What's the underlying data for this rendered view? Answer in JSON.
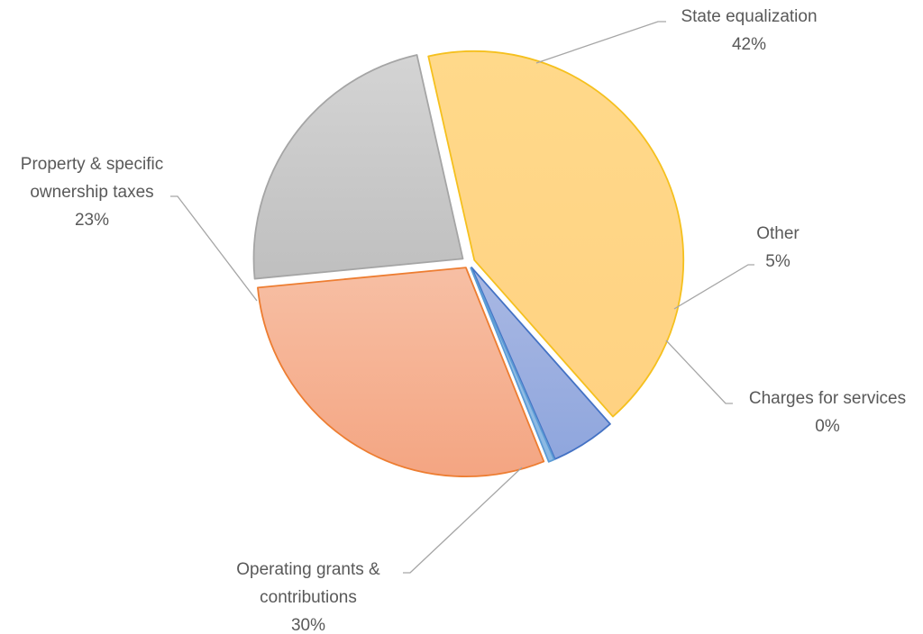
{
  "chart_data": {
    "type": "pie",
    "title": "",
    "slices": [
      {
        "name": "State equalization",
        "label": "State equalization",
        "percent_label": "42%",
        "value": 42.0,
        "color": "#FFD98A",
        "gradient_to": "#FFD282",
        "stroke": "#F5C01E"
      },
      {
        "name": "Other",
        "label": "Other",
        "percent_label": "5%",
        "value": 5.0,
        "color": "#A9B8E3",
        "gradient_to": "#8FA6DD",
        "stroke": "#4472C4"
      },
      {
        "name": "Charges for services",
        "label": "Charges for services",
        "percent_label": "0%",
        "value": 0.45,
        "color": "#9DC3E6",
        "gradient_to": "#8AB8E3",
        "stroke": "#5B9BD5"
      },
      {
        "name": "Operating grants & contributions",
        "label": "Operating grants & contributions",
        "percent_label": "30%",
        "value": 29.55,
        "color": "#F7BFA4",
        "gradient_to": "#F4A582",
        "stroke": "#ED7D31"
      },
      {
        "name": "Property & specific ownership taxes",
        "label": "Property & specific ownership taxes",
        "percent_label": "23%",
        "value": 23.0,
        "color": "#D4D4D4",
        "gradient_to": "#BFBFBF",
        "stroke": "#A5A5A5"
      }
    ],
    "legend": "none",
    "labels": "outside with leader lines"
  }
}
